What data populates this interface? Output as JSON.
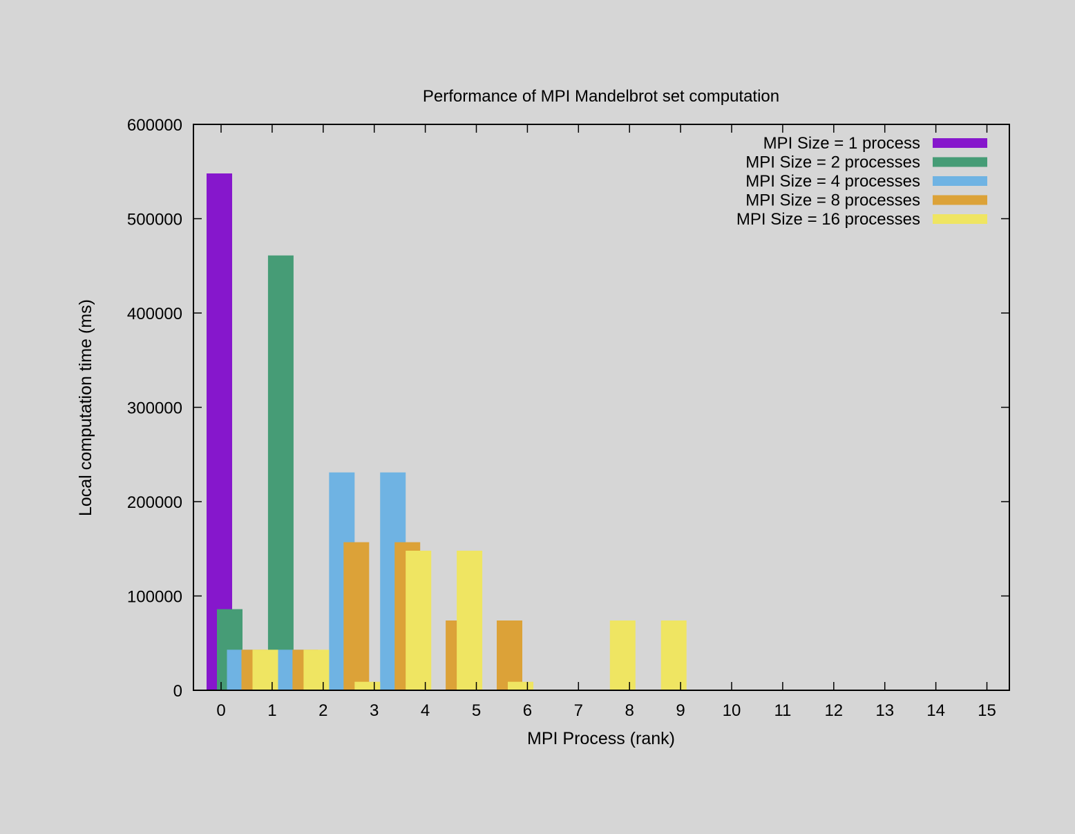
{
  "chart_data": {
    "type": "bar",
    "title": "Performance of MPI Mandelbrot set computation",
    "xlabel": "MPI Process (rank)",
    "ylabel": "Local computation time (ms)",
    "categories": [
      "0",
      "1",
      "2",
      "3",
      "4",
      "5",
      "6",
      "7",
      "8",
      "9",
      "10",
      "11",
      "12",
      "13",
      "14",
      "15"
    ],
    "ylim": [
      0,
      600000
    ],
    "yticks": [
      "0",
      "100000",
      "200000",
      "300000",
      "400000",
      "500000",
      "600000"
    ],
    "legend_position": "top-right",
    "grid": false,
    "series": [
      {
        "name": "MPI Size = 1 process",
        "color": "#8617cc",
        "values": [
          548000,
          null,
          null,
          null,
          null,
          null,
          null,
          null,
          null,
          null,
          null,
          null,
          null,
          null,
          null,
          null
        ]
      },
      {
        "name": "MPI Size = 2 processes",
        "color": "#469c76",
        "values": [
          86000,
          461000,
          null,
          null,
          null,
          null,
          null,
          null,
          null,
          null,
          null,
          null,
          null,
          null,
          null,
          null
        ]
      },
      {
        "name": "MPI Size = 4 processes",
        "color": "#6fb3e3",
        "values": [
          43000,
          43000,
          231000,
          231000,
          null,
          null,
          null,
          null,
          null,
          null,
          null,
          null,
          null,
          null,
          null,
          null
        ]
      },
      {
        "name": "MPI Size = 8 processes",
        "color": "#dca238",
        "values": [
          43000,
          43000,
          157000,
          157000,
          74000,
          74000,
          null,
          null,
          null,
          null,
          null,
          null,
          null,
          null,
          null,
          null
        ]
      },
      {
        "name": "MPI Size = 16 processes",
        "color": "#efe562",
        "values": [
          43000,
          43000,
          9000,
          148000,
          148000,
          9000,
          0,
          74000,
          74000,
          null,
          null,
          null,
          null,
          null,
          null,
          null
        ]
      }
    ]
  }
}
